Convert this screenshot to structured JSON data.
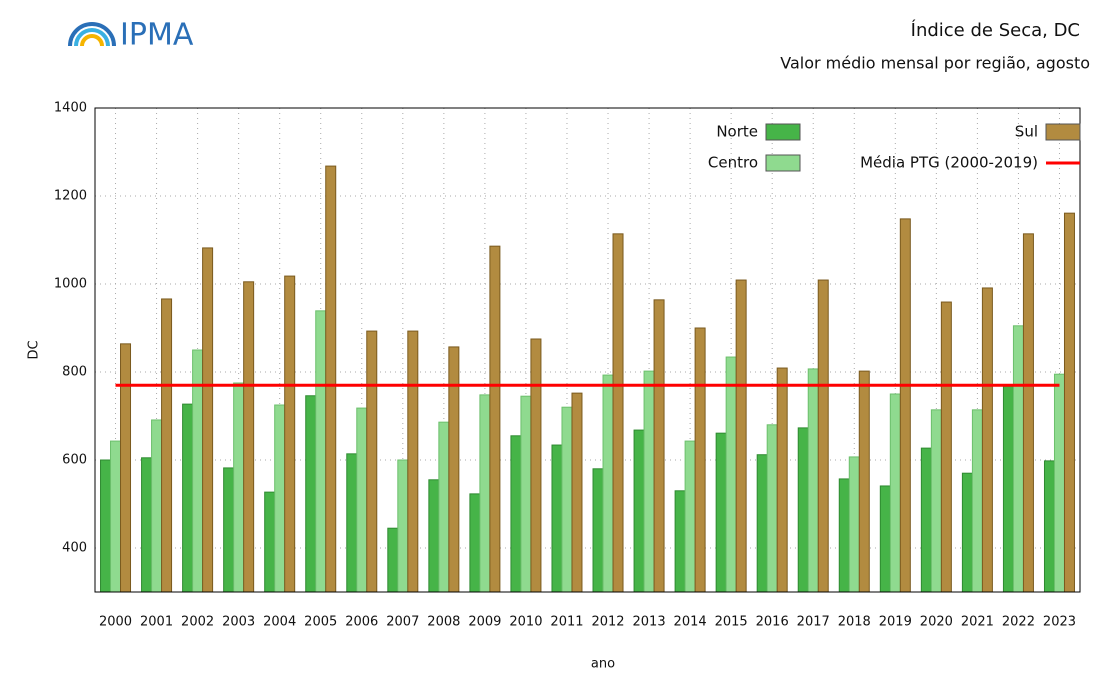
{
  "logo": "IPMA",
  "chart_data": {
    "type": "bar",
    "title": "Índice de Seca, DC",
    "subtitle": "Valor médio mensal por região, agosto",
    "x_label": "ano",
    "y_label": "DC",
    "categories": [
      "2000",
      "2001",
      "2002",
      "2003",
      "2004",
      "2005",
      "2006",
      "2007",
      "2008",
      "2009",
      "2010",
      "2011",
      "2012",
      "2013",
      "2014",
      "2015",
      "2016",
      "2017",
      "2018",
      "2019",
      "2020",
      "2021",
      "2022",
      "2023"
    ],
    "series": [
      {
        "name": "Norte",
        "color": "#46b448",
        "values": [
          600,
          605,
          727,
          582,
          527,
          746,
          614,
          445,
          555,
          523,
          655,
          634,
          580,
          668,
          530,
          661,
          612,
          673,
          557,
          541,
          627,
          570,
          768,
          598
        ]
      },
      {
        "name": "Centro",
        "color": "#8fda8f",
        "values": [
          643,
          691,
          850,
          775,
          725,
          939,
          718,
          600,
          686,
          748,
          745,
          720,
          793,
          802,
          643,
          834,
          680,
          807,
          607,
          750,
          714,
          714,
          905,
          795
        ]
      },
      {
        "name": "Sul",
        "color": "#b28b40",
        "values": [
          864,
          966,
          1082,
          1005,
          1018,
          1268,
          893,
          893,
          857,
          1086,
          875,
          752,
          1114,
          964,
          900,
          1009,
          809,
          1009,
          802,
          1148,
          959,
          991,
          1114,
          1161
        ]
      }
    ],
    "reference_line": {
      "name": "Média PTG (2000-2019)",
      "value": 770,
      "color": "#ff0000"
    },
    "ylim": [
      300,
      1400
    ],
    "yticks": [
      400,
      600,
      800,
      1000,
      1200,
      1400
    ],
    "grid": true
  }
}
